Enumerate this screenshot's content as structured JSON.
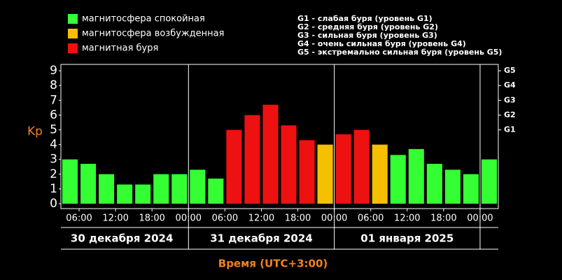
{
  "chart_data": {
    "type": "bar",
    "y_label": "Kp",
    "x_label": "Время (UTC+3:00)",
    "legend": [
      {
        "name": "магнитосфера спокойная",
        "color": "#33ff33"
      },
      {
        "name": "магнитосфера возбужденная",
        "color": "#f5c000"
      },
      {
        "name": "магнитная буря",
        "color": "#ee1111"
      }
    ],
    "storm_levels": [
      "G1 - слабая буря (уровень G1)",
      "G2 - средняя буря (уровень G2)",
      "G3 - сильная буря (уровень G3)",
      "G4 - очень сильная буря (уровень G4)",
      "G5 - экстремально сильная буря (уровень G5)"
    ],
    "values": [
      3.0,
      2.7,
      2.0,
      1.3,
      1.3,
      2.0,
      2.0,
      2.3,
      1.7,
      5.0,
      6.0,
      6.7,
      5.3,
      4.3,
      4.0,
      4.7,
      5.0,
      4.0,
      3.3,
      3.7,
      2.7,
      2.3,
      2.0,
      3.0
    ],
    "colors": [
      "#33ff33",
      "#33ff33",
      "#33ff33",
      "#33ff33",
      "#33ff33",
      "#33ff33",
      "#33ff33",
      "#33ff33",
      "#33ff33",
      "#ee1111",
      "#ee1111",
      "#ee1111",
      "#ee1111",
      "#ee1111",
      "#f5c000",
      "#ee1111",
      "#ee1111",
      "#f5c000",
      "#33ff33",
      "#33ff33",
      "#33ff33",
      "#33ff33",
      "#33ff33",
      "#33ff33"
    ],
    "xticks": [
      "06:00",
      "12:00",
      "18:00",
      "00:00",
      "06:00",
      "12:00",
      "18:00",
      "00:00",
      "06:00",
      "12:00",
      "18:00",
      "00:00"
    ],
    "days": [
      "30 декабря 2024",
      "31 декабря 2024",
      "01 января 2025"
    ],
    "ylim": [
      0,
      9.4
    ],
    "yticks": [
      0,
      1,
      2,
      3,
      4,
      5,
      6,
      7,
      8,
      9
    ],
    "y2lim": [
      0,
      9.4
    ],
    "y2ticks": [
      {
        "value": 5,
        "label": "G1"
      },
      {
        "value": 6,
        "label": "G2"
      },
      {
        "value": 7,
        "label": "G3"
      },
      {
        "value": 8,
        "label": "G4"
      },
      {
        "value": 9,
        "label": "G5"
      }
    ]
  }
}
